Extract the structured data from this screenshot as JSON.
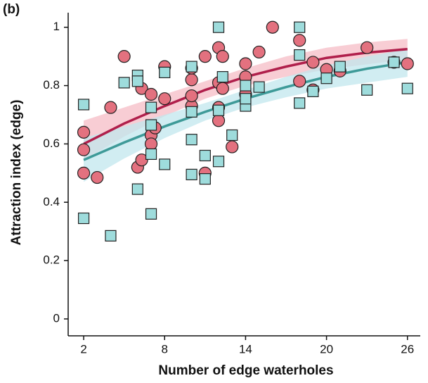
{
  "chart_data": {
    "type": "scatter",
    "panel_label": "(b)",
    "x_label": "Number of edge waterholes",
    "y_label": "Attraction index (edge)",
    "xlim": [
      0.85,
      26.95
    ],
    "ylim": [
      -0.058,
      1.05
    ],
    "xticks": [
      2,
      8,
      14,
      20,
      26
    ],
    "yticks": [
      0,
      0.2,
      0.4,
      0.6,
      0.8,
      1
    ],
    "series": [
      {
        "marker": "circle",
        "color": "#e3717f",
        "x": [
          2,
          2,
          2,
          3,
          4,
          5,
          6,
          6.3,
          6.3,
          7,
          7,
          7,
          7.3,
          8,
          8,
          10,
          10,
          10,
          10,
          11,
          11,
          12,
          12,
          12,
          12,
          12.3,
          12.3,
          13,
          14,
          14,
          14,
          15,
          16,
          18,
          18,
          19,
          19,
          20,
          21,
          23,
          25,
          26
        ],
        "values": [
          0.64,
          0.58,
          0.5,
          0.485,
          0.725,
          0.9,
          0.52,
          0.545,
          0.79,
          0.63,
          0.77,
          0.6,
          0.655,
          0.865,
          0.755,
          0.73,
          0.765,
          0.82,
          0.86,
          0.5,
          0.9,
          0.93,
          0.81,
          0.725,
          0.68,
          0.9,
          0.79,
          0.59,
          0.875,
          0.83,
          0.77,
          0.915,
          1.0,
          0.955,
          0.815,
          0.88,
          0.785,
          0.855,
          0.85,
          0.93,
          0.88,
          0.875
        ]
      },
      {
        "marker": "square",
        "color": "#9edcdc",
        "x": [
          2,
          2,
          4,
          5,
          6,
          6,
          6,
          7,
          7,
          7,
          7,
          8,
          8,
          10,
          10,
          10,
          10,
          11,
          11,
          12,
          12,
          12,
          12.3,
          13,
          14,
          14,
          14,
          15,
          18,
          18,
          18,
          19,
          20,
          21,
          23,
          25,
          26
        ],
        "values": [
          0.735,
          0.345,
          0.285,
          0.81,
          0.835,
          0.815,
          0.445,
          0.725,
          0.665,
          0.565,
          0.36,
          0.845,
          0.53,
          0.865,
          0.71,
          0.615,
          0.495,
          0.56,
          0.48,
          1.0,
          0.54,
          0.715,
          0.83,
          0.63,
          0.73,
          0.8,
          0.755,
          0.795,
          1.0,
          0.74,
          0.905,
          0.78,
          0.825,
          0.865,
          0.785,
          0.88,
          0.79
        ]
      }
    ],
    "fits": [
      {
        "color": "#b01f4b",
        "band_color": "#f5bcc5",
        "x": [
          2,
          5,
          8,
          11,
          14,
          17,
          20,
          23,
          26
        ],
        "values": [
          0.6,
          0.67,
          0.73,
          0.785,
          0.83,
          0.865,
          0.895,
          0.913,
          0.925
        ],
        "lower": [
          0.545,
          0.625,
          0.695,
          0.755,
          0.8,
          0.83,
          0.855,
          0.873,
          0.89
        ],
        "upper": [
          0.68,
          0.725,
          0.77,
          0.815,
          0.86,
          0.9,
          0.93,
          0.948,
          0.96
        ]
      },
      {
        "color": "#3e9a98",
        "band_color": "#c2e7ee",
        "x": [
          2,
          5,
          8,
          11,
          14,
          17,
          20,
          23,
          26
        ],
        "values": [
          0.545,
          0.605,
          0.66,
          0.71,
          0.755,
          0.795,
          0.83,
          0.858,
          0.88
        ],
        "lower": [
          0.47,
          0.55,
          0.62,
          0.68,
          0.725,
          0.76,
          0.79,
          0.81,
          0.83
        ],
        "upper": [
          0.62,
          0.66,
          0.7,
          0.74,
          0.785,
          0.83,
          0.87,
          0.9,
          0.925
        ]
      }
    ]
  }
}
